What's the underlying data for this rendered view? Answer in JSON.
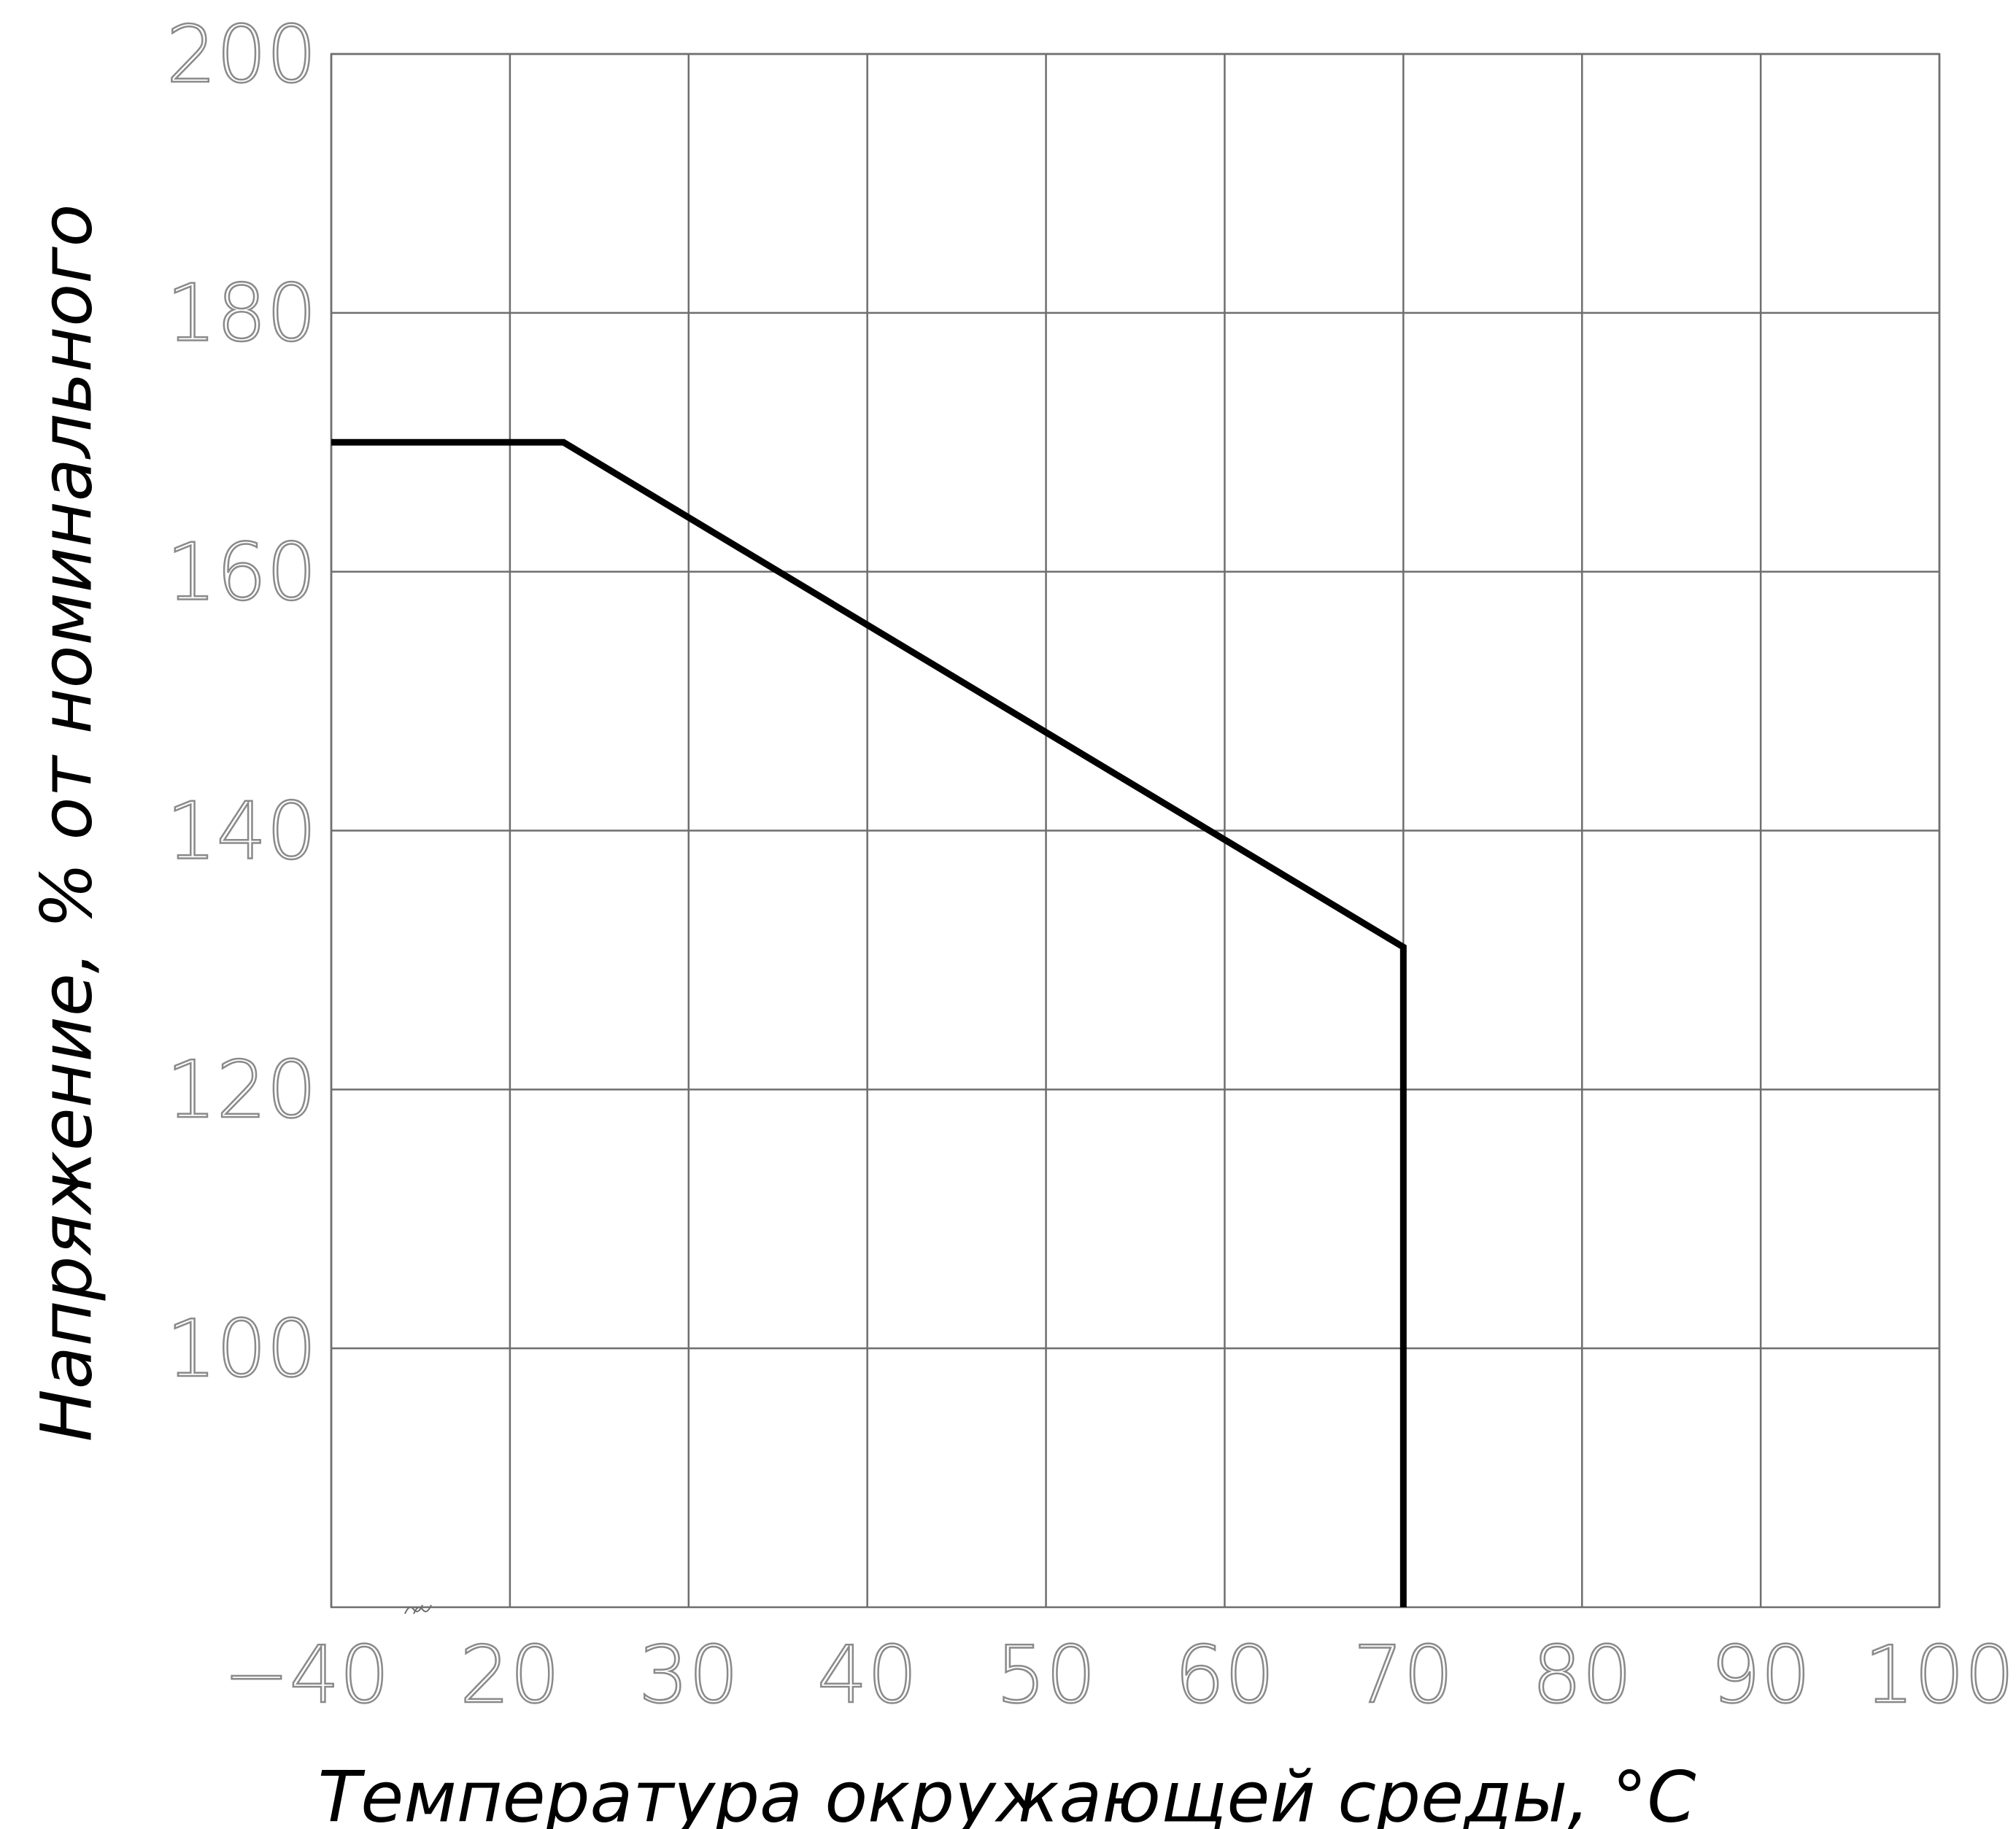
{
  "chart_data": {
    "type": "line",
    "x_label": "Температура окружающей среды, °C",
    "y_label": "Напряжение,  % от номинального",
    "series": [
      {
        "color": "#000000",
        "x": [
          -40,
          23,
          70,
          70
        ],
        "values": [
          170,
          170,
          131,
          80
        ]
      }
    ],
    "xlim": [
      -40,
      100
    ],
    "xticks": [
      {
        "value": -40,
        "label": "−40"
      },
      20,
      30,
      40,
      50,
      60,
      70,
      80,
      90,
      100
    ],
    "ylim": [
      80,
      200
    ],
    "yticks": [
      100,
      120,
      140,
      160,
      180,
      200
    ],
    "grid": true
  }
}
